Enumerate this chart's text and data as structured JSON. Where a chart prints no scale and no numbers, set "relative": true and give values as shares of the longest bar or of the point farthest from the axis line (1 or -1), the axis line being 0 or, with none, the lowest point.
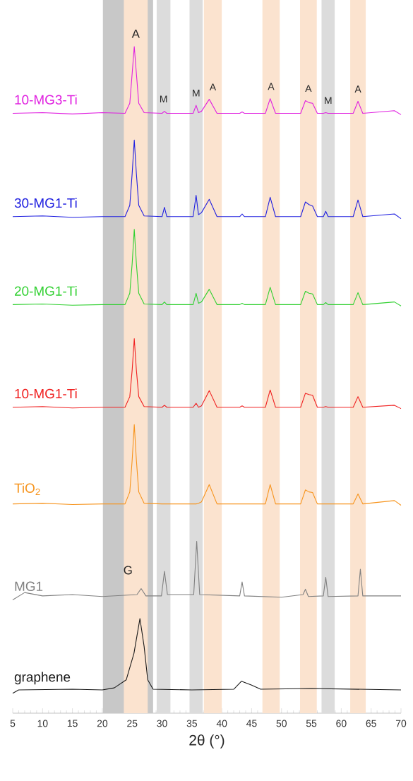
{
  "chart_data": {
    "type": "line",
    "relative": true,
    "xlabel": "2θ (°)",
    "xlim": [
      5,
      70
    ],
    "xticks": [
      5,
      10,
      15,
      20,
      25,
      30,
      35,
      40,
      45,
      50,
      55,
      60,
      65,
      70
    ],
    "x": [
      5,
      10,
      15,
      20,
      23.8,
      24.6,
      25.0,
      25.35,
      25.7,
      26.1,
      27,
      30.0,
      30.4,
      30.8,
      35.2,
      35.7,
      36.1,
      36.6,
      37.9,
      39.2,
      43.0,
      43.4,
      43.8,
      47.3,
      48.1,
      49.0,
      53.2,
      54.0,
      54.6,
      55.2,
      56.0,
      57.0,
      57.4,
      57.8,
      62.0,
      62.8,
      63.6,
      68.9,
      70
    ],
    "bands": [
      {
        "axis": "x",
        "from": 20.1,
        "to": 28.5,
        "label": "G",
        "color": "#c8c8c8"
      },
      {
        "axis": "x",
        "from": 23.6,
        "to": 27.6,
        "label": "A",
        "color": "#fbe3cf"
      },
      {
        "axis": "x",
        "from": 29.1,
        "to": 31.4,
        "label": "M",
        "color": "#dcdcdc"
      },
      {
        "axis": "x",
        "from": 34.6,
        "to": 36.8,
        "label": "M",
        "color": "#dcdcdc"
      },
      {
        "axis": "x",
        "from": 37.0,
        "to": 40.0,
        "label": "A",
        "color": "#fbe3cf"
      },
      {
        "axis": "x",
        "from": 46.8,
        "to": 49.7,
        "label": "A",
        "color": "#fbe3cf"
      },
      {
        "axis": "x",
        "from": 53.1,
        "to": 55.9,
        "label": "A",
        "color": "#fbe3cf"
      },
      {
        "axis": "x",
        "from": 56.7,
        "to": 58.9,
        "label": "M",
        "color": "#dcdcdc"
      },
      {
        "axis": "x",
        "from": 61.5,
        "to": 64.1,
        "label": "A",
        "color": "#fbe3cf"
      }
    ],
    "series": [
      {
        "name": "10-MG3-Ti",
        "color": "#e020e0",
        "values": [
          0.9,
          0.901,
          0.899,
          0.901,
          0.9,
          0.915,
          0.96,
          1.0,
          0.96,
          0.915,
          0.901,
          0.9,
          0.903,
          0.9,
          0.9,
          0.912,
          0.901,
          0.903,
          0.921,
          0.9,
          0.9,
          0.902,
          0.9,
          0.9,
          0.922,
          0.9,
          0.9,
          0.919,
          0.916,
          0.915,
          0.9,
          0.9,
          0.901,
          0.9,
          0.9,
          0.918,
          0.9,
          0.904,
          0.898
        ]
      },
      {
        "name": "30-MG1-Ti",
        "color": "#2020e0",
        "values": [
          0.745,
          0.746,
          0.744,
          0.745,
          0.745,
          0.762,
          0.81,
          0.86,
          0.81,
          0.762,
          0.746,
          0.745,
          0.759,
          0.745,
          0.745,
          0.777,
          0.748,
          0.751,
          0.771,
          0.745,
          0.745,
          0.749,
          0.745,
          0.745,
          0.774,
          0.745,
          0.745,
          0.767,
          0.763,
          0.761,
          0.745,
          0.745,
          0.753,
          0.745,
          0.745,
          0.77,
          0.745,
          0.749,
          0.742
        ]
      },
      {
        "name": "20-MG1-Ti",
        "color": "#30d030",
        "values": [
          0.613,
          0.614,
          0.612,
          0.613,
          0.613,
          0.63,
          0.675,
          0.726,
          0.675,
          0.63,
          0.614,
          0.613,
          0.617,
          0.613,
          0.613,
          0.63,
          0.615,
          0.617,
          0.636,
          0.613,
          0.613,
          0.615,
          0.613,
          0.613,
          0.639,
          0.613,
          0.613,
          0.633,
          0.63,
          0.629,
          0.613,
          0.613,
          0.616,
          0.613,
          0.613,
          0.631,
          0.613,
          0.617,
          0.611
        ]
      },
      {
        "name": "10-MG1-Ti",
        "color": "#f02020",
        "values": [
          0.459,
          0.46,
          0.458,
          0.459,
          0.459,
          0.475,
          0.515,
          0.562,
          0.515,
          0.475,
          0.46,
          0.459,
          0.462,
          0.459,
          0.459,
          0.465,
          0.459,
          0.461,
          0.484,
          0.459,
          0.459,
          0.461,
          0.459,
          0.459,
          0.485,
          0.459,
          0.459,
          0.48,
          0.478,
          0.477,
          0.459,
          0.459,
          0.46,
          0.459,
          0.459,
          0.475,
          0.459,
          0.462,
          0.457
        ]
      },
      {
        "name": "TiO$_{2}$",
        "color": "#f7941d",
        "values": [
          0.314,
          0.315,
          0.313,
          0.314,
          0.314,
          0.332,
          0.38,
          0.433,
          0.38,
          0.332,
          0.315,
          0.314,
          0.314,
          0.314,
          0.314,
          0.314,
          0.315,
          0.317,
          0.343,
          0.314,
          0.314,
          0.314,
          0.314,
          0.314,
          0.343,
          0.314,
          0.314,
          0.335,
          0.332,
          0.331,
          0.314,
          0.314,
          0.314,
          0.314,
          0.314,
          0.329,
          0.314,
          0.319,
          0.312
        ]
      },
      {
        "name": "MG1",
        "color": "#808080",
        "x": [
          5,
          7,
          10,
          15,
          20,
          25.8,
          26.5,
          27.3,
          29.9,
          30.4,
          30.9,
          35.3,
          35.8,
          36.3,
          43.0,
          43.4,
          43.8,
          50,
          53.6,
          54.0,
          54.5,
          57.0,
          57.4,
          57.8,
          62.8,
          63.2,
          63.6,
          70
        ],
        "values": [
          0.17,
          0.181,
          0.176,
          0.178,
          0.175,
          0.178,
          0.187,
          0.176,
          0.176,
          0.213,
          0.178,
          0.178,
          0.258,
          0.178,
          0.176,
          0.197,
          0.176,
          0.174,
          0.178,
          0.186,
          0.175,
          0.176,
          0.204,
          0.175,
          0.176,
          0.216,
          0.176,
          0.176
        ]
      },
      {
        "name": "graphene",
        "color": "#1a1a1a",
        "x": [
          5,
          6,
          15,
          20,
          22,
          24,
          25.3,
          26.3,
          27.0,
          27.6,
          28.5,
          35,
          42,
          43.3,
          45,
          46.5,
          55,
          70
        ],
        "values": [
          0.03,
          0.035,
          0.036,
          0.035,
          0.038,
          0.05,
          0.09,
          0.142,
          0.1,
          0.05,
          0.036,
          0.035,
          0.036,
          0.048,
          0.042,
          0.036,
          0.037,
          0.035
        ]
      }
    ]
  }
}
